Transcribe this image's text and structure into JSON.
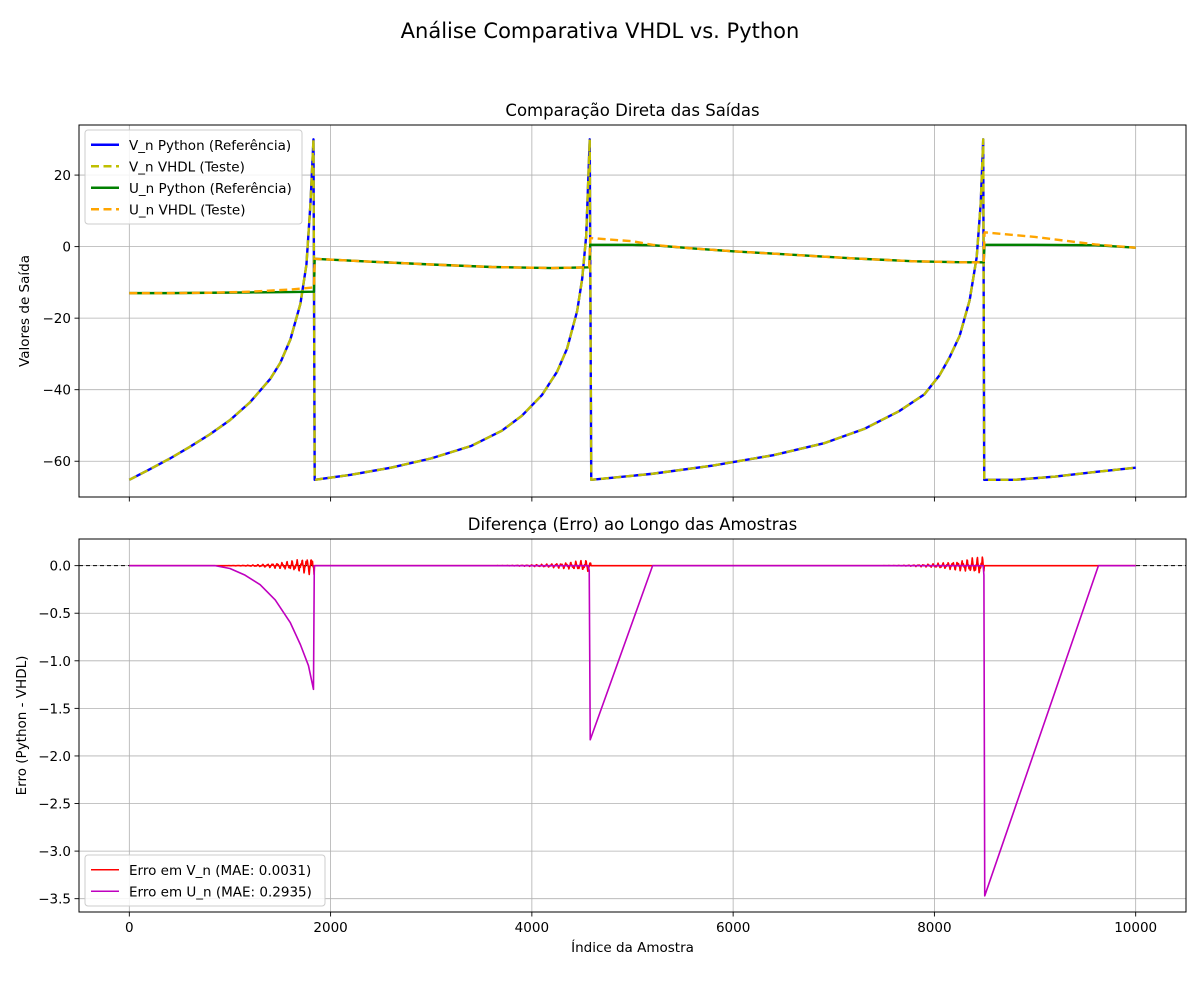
{
  "figure": {
    "suptitle": "Análise Comparativa VHDL vs. Python"
  },
  "chart_data": [
    {
      "type": "line",
      "title": "Comparação Direta das Saídas",
      "xlabel": "",
      "ylabel": "Valores de Saída",
      "xlim": [
        -500,
        10500
      ],
      "ylim": [
        -70,
        34
      ],
      "x_ticks": [
        0,
        2000,
        4000,
        6000,
        8000,
        10000
      ],
      "y_ticks": [
        -60,
        -40,
        -20,
        0,
        20
      ],
      "y_tick_labels": [
        "−60",
        "−40",
        "−20",
        "0",
        "20"
      ],
      "show_x_tick_labels": false,
      "grid": true,
      "legend_position": "upper-left",
      "series": [
        {
          "name": "V_n Python (Referência)",
          "color": "#0000ff",
          "style": "solid",
          "points": [
            [
              0,
              -65.2
            ],
            [
              200,
              -62.3
            ],
            [
              400,
              -59.3
            ],
            [
              600,
              -56
            ],
            [
              800,
              -52.5
            ],
            [
              1000,
              -48.5
            ],
            [
              1200,
              -43.5
            ],
            [
              1400,
              -37
            ],
            [
              1500,
              -32.5
            ],
            [
              1600,
              -26
            ],
            [
              1700,
              -16
            ],
            [
              1760,
              -5
            ],
            [
              1800,
              12
            ],
            [
              1830,
              30
            ],
            [
              1842,
              -65.2
            ],
            [
              2200,
              -63.8
            ],
            [
              2600,
              -61.8
            ],
            [
              3000,
              -59.2
            ],
            [
              3400,
              -55.7
            ],
            [
              3700,
              -51.5
            ],
            [
              3900,
              -47.3
            ],
            [
              4100,
              -41.5
            ],
            [
              4250,
              -35
            ],
            [
              4350,
              -28.5
            ],
            [
              4450,
              -18
            ],
            [
              4500,
              -9
            ],
            [
              4540,
              3
            ],
            [
              4575,
              30
            ],
            [
              4590,
              -65.2
            ],
            [
              5200,
              -63.5
            ],
            [
              5800,
              -61.2
            ],
            [
              6400,
              -58.3
            ],
            [
              6900,
              -55
            ],
            [
              7300,
              -51
            ],
            [
              7650,
              -46
            ],
            [
              7900,
              -41.3
            ],
            [
              8050,
              -36
            ],
            [
              8150,
              -31
            ],
            [
              8250,
              -25
            ],
            [
              8350,
              -15
            ],
            [
              8420,
              -3
            ],
            [
              8460,
              12
            ],
            [
              8485,
              30
            ],
            [
              8495,
              -65.2
            ],
            [
              8800,
              -65.2
            ],
            [
              9200,
              -64.3
            ],
            [
              9600,
              -63
            ],
            [
              10000,
              -61.8
            ]
          ]
        },
        {
          "name": "V_n VHDL (Teste)",
          "color": "#bfbf00",
          "style": "dashed",
          "points": [
            [
              0,
              -65.2
            ],
            [
              200,
              -62.3
            ],
            [
              400,
              -59.3
            ],
            [
              600,
              -56
            ],
            [
              800,
              -52.5
            ],
            [
              1000,
              -48.5
            ],
            [
              1200,
              -43.5
            ],
            [
              1400,
              -37
            ],
            [
              1500,
              -32.5
            ],
            [
              1600,
              -26
            ],
            [
              1700,
              -16
            ],
            [
              1760,
              -5
            ],
            [
              1800,
              12
            ],
            [
              1830,
              30
            ],
            [
              1842,
              -65.2
            ],
            [
              2200,
              -63.8
            ],
            [
              2600,
              -61.8
            ],
            [
              3000,
              -59.2
            ],
            [
              3400,
              -55.7
            ],
            [
              3700,
              -51.5
            ],
            [
              3900,
              -47.3
            ],
            [
              4100,
              -41.5
            ],
            [
              4250,
              -35
            ],
            [
              4350,
              -28.5
            ],
            [
              4450,
              -18
            ],
            [
              4500,
              -9
            ],
            [
              4540,
              3
            ],
            [
              4575,
              30
            ],
            [
              4590,
              -65.2
            ],
            [
              5200,
              -63.5
            ],
            [
              5800,
              -61.2
            ],
            [
              6400,
              -58.3
            ],
            [
              6900,
              -55
            ],
            [
              7300,
              -51
            ],
            [
              7650,
              -46
            ],
            [
              7900,
              -41.3
            ],
            [
              8050,
              -36
            ],
            [
              8150,
              -31
            ],
            [
              8250,
              -25
            ],
            [
              8350,
              -15
            ],
            [
              8420,
              -3
            ],
            [
              8460,
              12
            ],
            [
              8485,
              30
            ],
            [
              8495,
              -65.2
            ],
            [
              8800,
              -65.2
            ],
            [
              9200,
              -64.3
            ],
            [
              9600,
              -63
            ],
            [
              10000,
              -61.8
            ]
          ]
        },
        {
          "name": "U_n Python (Referência)",
          "color": "#008000",
          "style": "solid",
          "points": [
            [
              0,
              -13
            ],
            [
              400,
              -13
            ],
            [
              800,
              -12.9
            ],
            [
              1200,
              -12.8
            ],
            [
              1600,
              -12.7
            ],
            [
              1835,
              -12.6
            ],
            [
              1842,
              -3.4
            ],
            [
              2400,
              -4.2
            ],
            [
              3000,
              -5
            ],
            [
              3600,
              -5.7
            ],
            [
              4200,
              -6
            ],
            [
              4570,
              -5.8
            ],
            [
              4580,
              0.5
            ],
            [
              5000,
              0.5
            ],
            [
              5200,
              0.4
            ],
            [
              5600,
              -0.5
            ],
            [
              6000,
              -1.3
            ],
            [
              6600,
              -2.3
            ],
            [
              7200,
              -3.3
            ],
            [
              7800,
              -4.1
            ],
            [
              8300,
              -4.4
            ],
            [
              8490,
              -4.4
            ],
            [
              8498,
              0.5
            ],
            [
              9000,
              0.5
            ],
            [
              9600,
              0.4
            ],
            [
              10000,
              -0.3
            ]
          ]
        },
        {
          "name": "U_n VHDL (Teste)",
          "color": "#ffa500",
          "style": "dashed",
          "points": [
            [
              0,
              -13
            ],
            [
              400,
              -13
            ],
            [
              800,
              -12.9
            ],
            [
              1200,
              -12.6
            ],
            [
              1600,
              -12
            ],
            [
              1835,
              -11.4
            ],
            [
              1842,
              -3.4
            ],
            [
              2400,
              -4.2
            ],
            [
              3000,
              -5
            ],
            [
              3600,
              -5.7
            ],
            [
              4200,
              -6
            ],
            [
              4570,
              -5.8
            ],
            [
              4580,
              2.4
            ],
            [
              5000,
              1.5
            ],
            [
              5200,
              0.5
            ],
            [
              5600,
              -0.5
            ],
            [
              6000,
              -1.3
            ],
            [
              6600,
              -2.3
            ],
            [
              7200,
              -3.3
            ],
            [
              7800,
              -4.1
            ],
            [
              8300,
              -4.4
            ],
            [
              8490,
              -4.4
            ],
            [
              8498,
              4
            ],
            [
              9000,
              2.7
            ],
            [
              9600,
              0.6
            ],
            [
              10000,
              -0.3
            ]
          ]
        }
      ]
    },
    {
      "type": "line",
      "title": "Diferença (Erro) ao Longo das Amostras",
      "xlabel": "Índice da Amostra",
      "ylabel": "Erro (Python - VHDL)",
      "xlim": [
        -500,
        10500
      ],
      "ylim": [
        -3.64,
        0.28
      ],
      "x_ticks": [
        0,
        2000,
        4000,
        6000,
        8000,
        10000
      ],
      "x_tick_labels": [
        "0",
        "2000",
        "4000",
        "6000",
        "8000",
        "10000"
      ],
      "y_ticks": [
        0.0,
        -0.5,
        -1.0,
        -1.5,
        -2.0,
        -2.5,
        -3.0,
        -3.5
      ],
      "y_tick_labels": [
        "0.0",
        "−0.5",
        "−1.0",
        "−1.5",
        "−2.0",
        "−2.5",
        "−3.0",
        "−3.5"
      ],
      "grid": true,
      "legend_position": "lower-left",
      "reference_line": {
        "y": 0,
        "color": "#000000",
        "style": "dashed"
      },
      "oscillation_bursts": [
        {
          "x_start": 800,
          "x_end": 1838,
          "max_amp": 0.11
        },
        {
          "x_start": 3400,
          "x_end": 4585,
          "max_amp": 0.07
        },
        {
          "x_start": 7300,
          "x_end": 8492,
          "max_amp": 0.11
        }
      ],
      "series": [
        {
          "name": "Erro em V_n (MAE: 0.0031)",
          "color": "#ff0000",
          "style": "solid",
          "points": [
            [
              0,
              0
            ],
            [
              10000,
              0
            ]
          ]
        },
        {
          "name": "Erro em U_n (MAE: 0.2935)",
          "color": "#bf00bf",
          "style": "solid",
          "points": [
            [
              0,
              0
            ],
            [
              850,
              0
            ],
            [
              1000,
              -0.03
            ],
            [
              1150,
              -0.1
            ],
            [
              1300,
              -0.2
            ],
            [
              1450,
              -0.36
            ],
            [
              1600,
              -0.6
            ],
            [
              1700,
              -0.83
            ],
            [
              1780,
              -1.05
            ],
            [
              1830,
              -1.3
            ],
            [
              1838,
              0
            ],
            [
              4560,
              0
            ],
            [
              4570,
              -0.05
            ],
            [
              4580,
              -1.83
            ],
            [
              5200,
              0
            ],
            [
              8485,
              0
            ],
            [
              8492,
              -0.1
            ],
            [
              8500,
              -3.47
            ],
            [
              9630,
              0
            ],
            [
              10000,
              0
            ]
          ]
        }
      ]
    }
  ]
}
